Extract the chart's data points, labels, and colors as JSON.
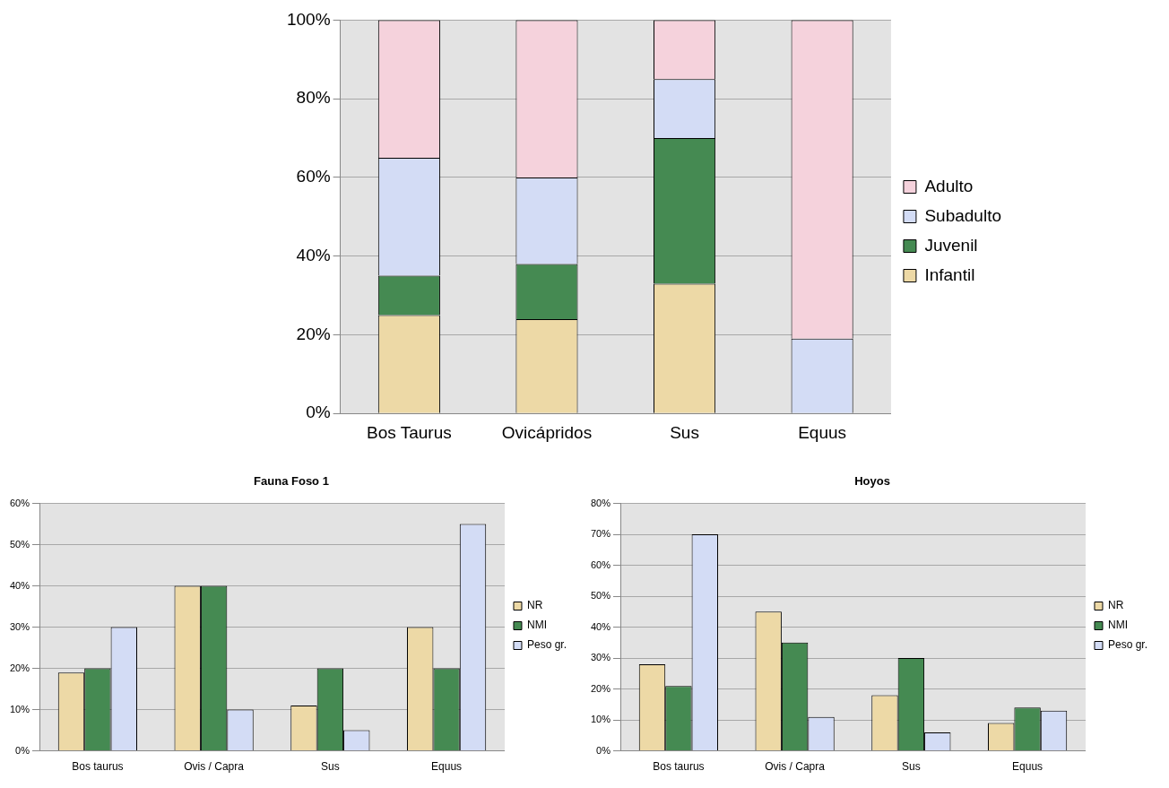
{
  "chart_data": [
    {
      "type": "bar",
      "stacked": true,
      "categories": [
        "Bos Taurus",
        "Ovicápridos",
        "Sus",
        "Equus"
      ],
      "ylim": [
        0,
        100
      ],
      "yticks": [
        {
          "value": 0,
          "label": "0%"
        },
        {
          "value": 20,
          "label": "20%"
        },
        {
          "value": 40,
          "label": "40%"
        },
        {
          "value": 60,
          "label": "60%"
        },
        {
          "value": 80,
          "label": "80%"
        },
        {
          "value": 100,
          "label": "100%"
        }
      ],
      "grid": "y",
      "legend": "right",
      "series": [
        {
          "name": "Infantil",
          "color": "#edd9a6",
          "values": [
            25,
            24,
            33,
            0
          ]
        },
        {
          "name": "Juvenil",
          "color": "#458a52",
          "values": [
            10,
            14,
            37,
            0
          ]
        },
        {
          "name": "Subadulto",
          "color": "#d3dcf5",
          "values": [
            30,
            22,
            15,
            19
          ]
        },
        {
          "name": "Adulto",
          "color": "#f5d2dc",
          "values": [
            35,
            40,
            15,
            81
          ]
        }
      ]
    },
    {
      "type": "bar",
      "title": "Fauna Foso 1",
      "categories": [
        "Bos taurus",
        "Ovis / Capra",
        "Sus",
        "Equus"
      ],
      "ylim": [
        0,
        60
      ],
      "yticks": [
        {
          "value": 0,
          "label": "0%"
        },
        {
          "value": 10,
          "label": "10%"
        },
        {
          "value": 20,
          "label": "20%"
        },
        {
          "value": 30,
          "label": "30%"
        },
        {
          "value": 40,
          "label": "40%"
        },
        {
          "value": 50,
          "label": "50%"
        },
        {
          "value": 60,
          "label": "60%"
        }
      ],
      "grid": "y",
      "legend": "right",
      "series": [
        {
          "name": "NR",
          "color": "#edd9a6",
          "values": [
            19,
            40,
            11,
            30
          ]
        },
        {
          "name": "NMI",
          "color": "#458a52",
          "values": [
            20,
            40,
            20,
            20
          ]
        },
        {
          "name": "Peso gr.",
          "color": "#d3dcf5",
          "values": [
            30,
            10,
            5,
            55
          ]
        }
      ]
    },
    {
      "type": "bar",
      "title": "Hoyos",
      "categories": [
        "Bos taurus",
        "Ovis / Capra",
        "Sus",
        "Equus"
      ],
      "ylim": [
        0,
        80
      ],
      "yticks": [
        {
          "value": 0,
          "label": "0%"
        },
        {
          "value": 10,
          "label": "10%"
        },
        {
          "value": 20,
          "label": "20%"
        },
        {
          "value": 30,
          "label": "30%"
        },
        {
          "value": 40,
          "label": "40%"
        },
        {
          "value": 50,
          "label": "50%"
        },
        {
          "value": 60,
          "label": "60%"
        },
        {
          "value": 70,
          "label": "70%"
        },
        {
          "value": 80,
          "label": "80%"
        }
      ],
      "grid": "y",
      "legend": "right",
      "series": [
        {
          "name": "NR",
          "color": "#edd9a6",
          "values": [
            28,
            45,
            18,
            9
          ]
        },
        {
          "name": "NMI",
          "color": "#458a52",
          "values": [
            21,
            35,
            30,
            14
          ]
        },
        {
          "name": "Peso gr.",
          "color": "#d3dcf5",
          "values": [
            70,
            11,
            6,
            13
          ]
        }
      ]
    }
  ]
}
